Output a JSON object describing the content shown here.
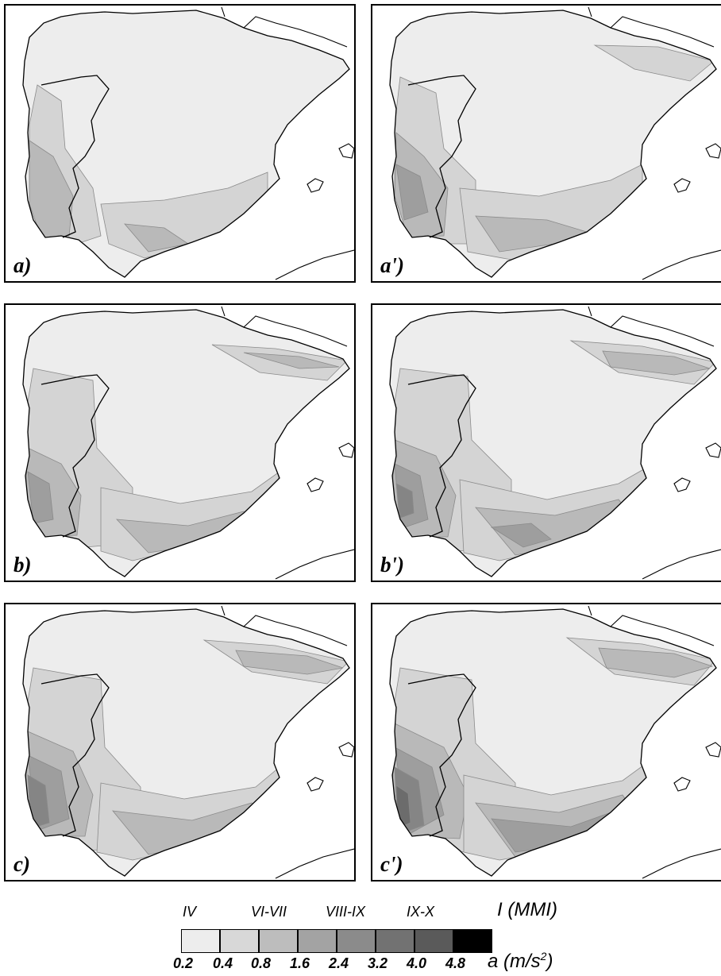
{
  "panels": [
    {
      "id": "a",
      "label": "a)",
      "variant": 0
    },
    {
      "id": "a_prime",
      "label": "a')",
      "variant": 1
    },
    {
      "id": "b",
      "label": "b)",
      "variant": 2
    },
    {
      "id": "b_prime",
      "label": "b')",
      "variant": 3
    },
    {
      "id": "c",
      "label": "c)",
      "variant": 4
    },
    {
      "id": "c_prime",
      "label": "c')",
      "variant": 5
    }
  ],
  "legend": {
    "intensity_unit": "I (MMI)",
    "acceleration_unit": "a (m/s",
    "acceleration_exp": "2",
    "acceleration_close": ")",
    "intensity_labels": [
      "IV",
      "VI-VII",
      "VIII-IX",
      "IX-X"
    ],
    "acceleration_labels": [
      "0.2",
      "0.4",
      "0.8",
      "1.6",
      "2.4",
      "3.2",
      "4.0",
      "4.8"
    ],
    "colors": [
      "#ededed",
      "#d8d8d8",
      "#bdbdbd",
      "#a3a3a3",
      "#8b8b8b",
      "#727272",
      "#5a5a5a",
      "#000000"
    ]
  },
  "map_colors": {
    "land_base": "#ededed",
    "level_1": "#d4d4d4",
    "level_2": "#b9b9b9",
    "level_3": "#9e9e9e",
    "level_4": "#858585",
    "level_5": "#6c6c6c",
    "outline": "#000000"
  }
}
